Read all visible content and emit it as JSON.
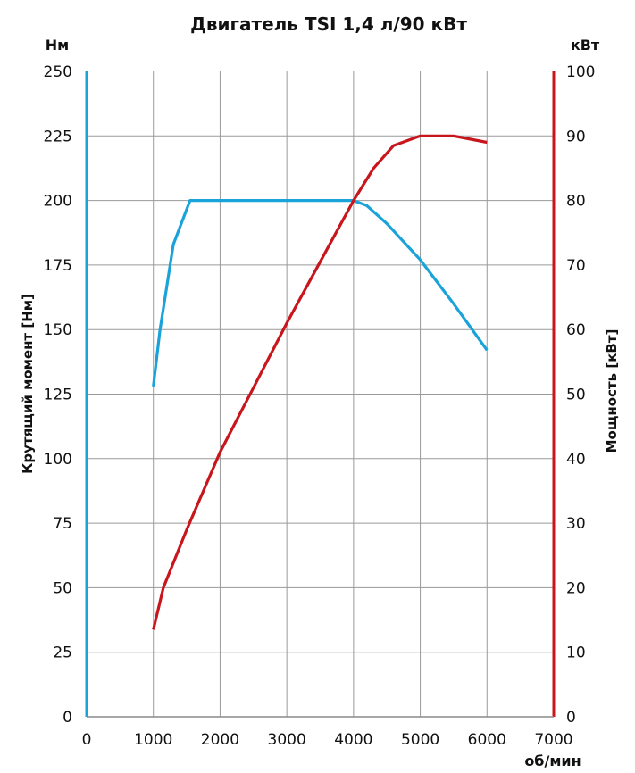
{
  "chart_data": {
    "type": "line",
    "title": "Двигатель TSI 1,4 л/90 кВт",
    "xlabel": "об/мин",
    "xlim": [
      0,
      7000
    ],
    "x_ticks": [
      "0",
      "1000",
      "2000",
      "3000",
      "4000",
      "5000",
      "6000",
      "7000"
    ],
    "y_left": {
      "label": "Крутящий момент [Нм]",
      "unit": "Нм",
      "ylim": [
        0,
        250
      ],
      "ticks": [
        "0",
        "25",
        "50",
        "75",
        "100",
        "125",
        "150",
        "175",
        "200",
        "225",
        "250"
      ],
      "color": "#1aa3d9"
    },
    "y_right": {
      "label": "Мощность [кВт]",
      "unit": "кВт",
      "ylim": [
        0,
        100
      ],
      "ticks": [
        "0",
        "10",
        "20",
        "30",
        "40",
        "50",
        "60",
        "70",
        "80",
        "90",
        "100"
      ],
      "color": "#c8161d"
    },
    "grid": true,
    "series": [
      {
        "axis": "left",
        "color": "#1aa3d9",
        "x": [
          1000,
          1100,
          1300,
          1550,
          1600,
          2000,
          3000,
          3800,
          4000,
          4200,
          4500,
          5000,
          5500,
          6000
        ],
        "y": [
          128,
          150,
          183,
          200,
          200,
          200,
          200,
          200,
          200,
          198,
          191,
          177,
          160,
          142
        ]
      },
      {
        "axis": "right",
        "color": "#c8161d",
        "x": [
          1000,
          1150,
          1500,
          2000,
          2500,
          3000,
          3500,
          4000,
          4300,
          4600,
          5000,
          5500,
          6000
        ],
        "y": [
          13.5,
          20,
          29,
          41,
          51,
          61,
          70.5,
          80,
          85,
          88.5,
          90,
          90,
          89
        ]
      }
    ]
  }
}
